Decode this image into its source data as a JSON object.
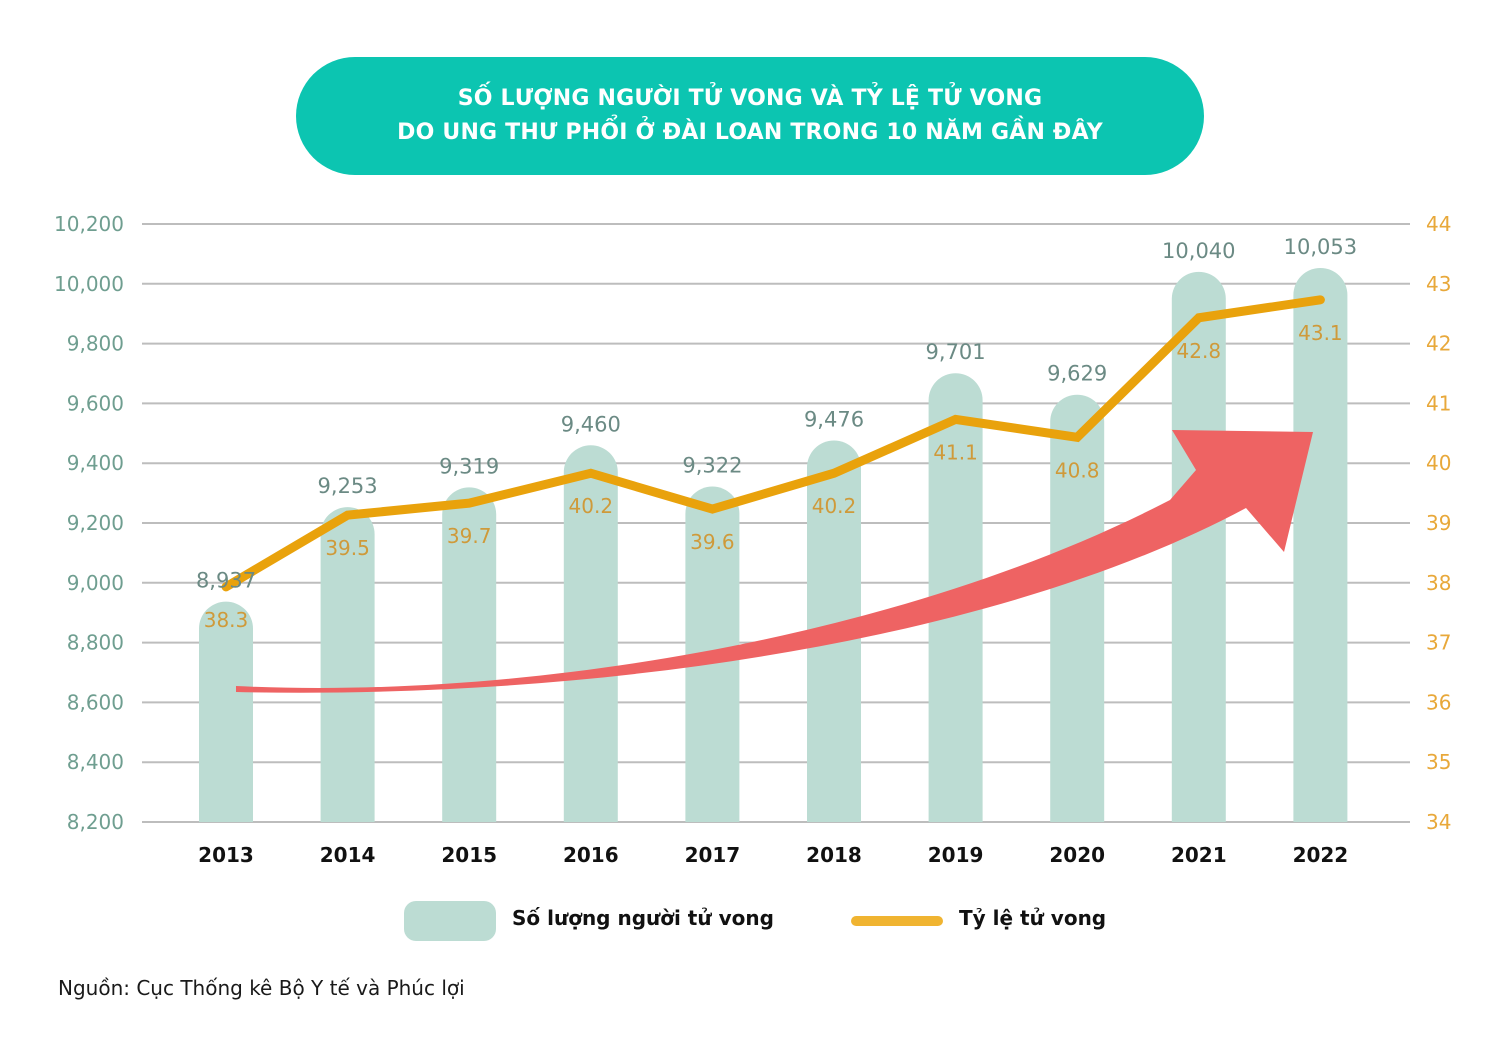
{
  "title": {
    "line1": "SỐ LƯỢNG NGƯỜI TỬ VONG VÀ TỶ LỆ TỬ VONG",
    "line2": "DO UNG THƯ PHỔI Ở ĐÀI LOAN TRONG 10 NĂM GẦN ĐÂY"
  },
  "legend": {
    "bars_label": "Số lượng người tử vong",
    "line_label": "Tỷ lệ tử vong"
  },
  "source": "Nguồn: Cục Thống kê Bộ Y tế và Phúc lợi",
  "colors": {
    "title_bg": "#0cc5b1",
    "bar": "#bcdcd3",
    "line": "#e9a20c",
    "left_axis_text": "#6f9e90",
    "right_axis_text": "#e8a83a",
    "bar_label": "#6b8a84",
    "line_label": "#cf9a3a",
    "trend_arrow": "#ee6363",
    "grid": "#bdbdbd"
  },
  "chart_data": {
    "type": "bar",
    "title": "SỐ LƯỢNG NGƯỜI TỬ VONG VÀ TỶ LỆ TỬ VONG DO UNG THƯ PHỔI Ở ĐÀI LOAN TRONG 10 NĂM GẦN ĐÂY",
    "categories": [
      "2013",
      "2014",
      "2015",
      "2016",
      "2017",
      "2018",
      "2019",
      "2020",
      "2021",
      "2022"
    ],
    "series": [
      {
        "name": "Số lượng người tử vong",
        "type": "bar",
        "axis": "left",
        "values": [
          8937,
          9253,
          9319,
          9460,
          9322,
          9476,
          9701,
          9629,
          10040,
          10053
        ],
        "labels": [
          "8,937",
          "9,253",
          "9,319",
          "9,460",
          "9,322",
          "9,476",
          "9,701",
          "9,629",
          "10,040",
          "10,053"
        ]
      },
      {
        "name": "Tỷ lệ tử vong",
        "type": "line",
        "axis": "right",
        "values": [
          38.3,
          39.5,
          39.7,
          40.2,
          39.6,
          40.2,
          41.1,
          40.8,
          42.8,
          43.1
        ],
        "labels": [
          "38.3",
          "39.5",
          "39.7",
          "40.2",
          "39.6",
          "40.2",
          "41.1",
          "40.8",
          "42.8",
          "43.1"
        ]
      }
    ],
    "left_axis": {
      "range": [
        8200,
        10200
      ],
      "ticks": [
        "8,200",
        "8,400",
        "8,600",
        "8,800",
        "9,000",
        "9,200",
        "9,400",
        "9,600",
        "9,800",
        "10,000",
        "10,200"
      ],
      "tick_values": [
        8200,
        8400,
        8600,
        8800,
        9000,
        9200,
        9400,
        9600,
        9800,
        10000,
        10200
      ]
    },
    "right_axis": {
      "range": [
        34,
        44
      ],
      "ticks": [
        "34",
        "35",
        "36",
        "37",
        "38",
        "39",
        "40",
        "41",
        "42",
        "43",
        "44"
      ],
      "tick_values": [
        34,
        35,
        36,
        37,
        38,
        39,
        40,
        41,
        42,
        43,
        44
      ]
    },
    "xlabel": "",
    "ylabel": "",
    "grid": true,
    "legend_position": "bottom",
    "annotations": [
      "upward trend arrow"
    ]
  }
}
